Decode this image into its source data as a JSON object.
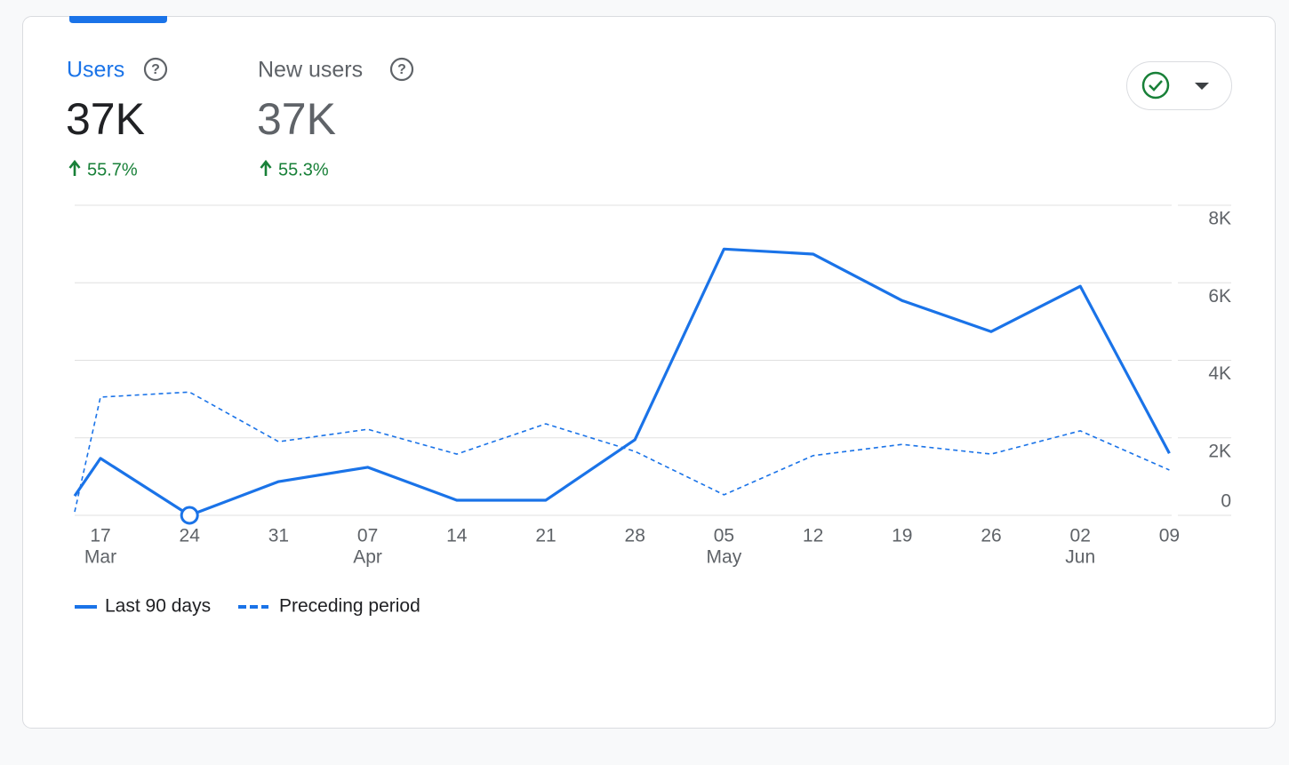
{
  "metrics": [
    {
      "label": "Users",
      "value": "37K",
      "change": "55.7%"
    },
    {
      "label": "New users",
      "value": "37K",
      "change": "55.3%"
    }
  ],
  "chart_data": {
    "type": "line",
    "categories": [
      null,
      "17",
      "24",
      "31",
      "07",
      "14",
      "21",
      "28",
      "05",
      "12",
      "19",
      "26",
      "02",
      "09"
    ],
    "category_sublabels": [
      null,
      "Mar",
      null,
      null,
      "Apr",
      null,
      null,
      null,
      "May",
      null,
      null,
      null,
      "Jun",
      null
    ],
    "series": [
      {
        "name": "Last 90 days",
        "color": "#1a73e8",
        "dashed": false,
        "values": [
          500,
          1470,
          0,
          870,
          1240,
          390,
          390,
          1950,
          6870,
          6740,
          5540,
          4740,
          5910,
          1600
        ]
      },
      {
        "name": "Preceding period",
        "color": "#1a73e8",
        "dashed": true,
        "values": [
          90,
          3050,
          3180,
          1900,
          2220,
          1580,
          2360,
          1650,
          530,
          1540,
          1830,
          1580,
          2180,
          1170
        ]
      }
    ],
    "ylim": [
      0,
      8000
    ],
    "yticks": [
      0,
      {
        "value": 2000,
        "label": "2K"
      },
      {
        "value": 4000,
        "label": "4K"
      },
      {
        "value": 6000,
        "label": "6K"
      },
      {
        "value": 8000,
        "label": "8K"
      }
    ],
    "grid": true,
    "highlight_index": 2
  }
}
